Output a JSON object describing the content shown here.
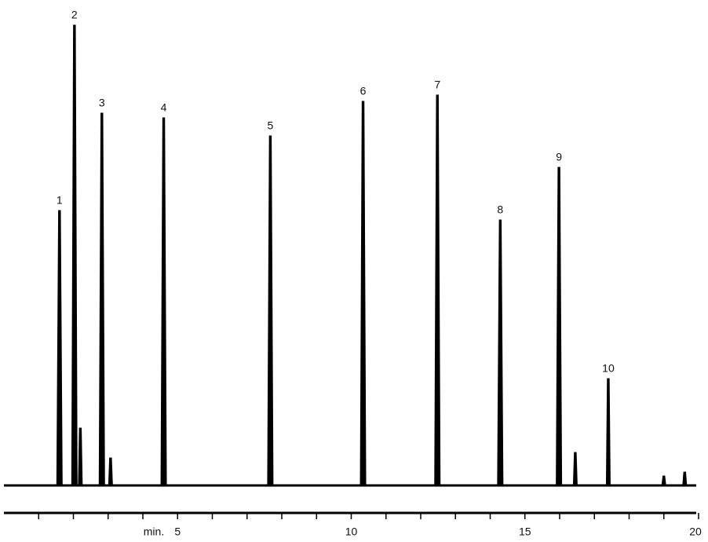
{
  "chart_data": {
    "type": "chromatogram",
    "xlabel": "min.",
    "x": [
      1.6,
      2.03,
      2.2,
      2.82,
      3.07,
      4.6,
      7.67,
      10.34,
      12.48,
      14.29,
      15.98,
      16.45,
      17.4,
      19.0,
      19.6
    ],
    "values": [
      350,
      586,
      73,
      474,
      35,
      468,
      445,
      489,
      497,
      338,
      405,
      42,
      136,
      12,
      17
    ],
    "labels": [
      "1",
      "2",
      null,
      "3",
      null,
      "4",
      "5",
      "6",
      "7",
      "8",
      "9",
      null,
      "10",
      null,
      null
    ],
    "color": "#000000",
    "xlim": [
      0,
      20
    ],
    "xticks": [
      5,
      10,
      15,
      20
    ],
    "xminor_ticks": [
      1,
      2,
      3,
      4,
      6,
      7,
      8,
      9,
      11,
      12,
      13,
      14,
      16,
      17,
      18,
      19
    ],
    "ylim": [
      0,
      600
    ]
  }
}
